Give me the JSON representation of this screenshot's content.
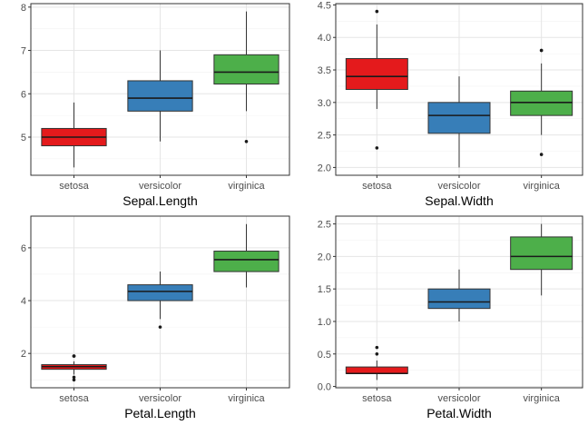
{
  "chart_data": [
    {
      "type": "box",
      "xlabel": "Sepal.Length",
      "categories": [
        "setosa",
        "versicolor",
        "virginica"
      ],
      "ylim": [
        4.12,
        8.08
      ],
      "yticks": [
        5,
        6,
        7,
        8
      ],
      "grid": true,
      "boxes": [
        {
          "category": "setosa",
          "min": 4.3,
          "q1": 4.8,
          "median": 5.0,
          "q3": 5.2,
          "max": 5.8,
          "outliers": [],
          "color": "#E41A1C"
        },
        {
          "category": "versicolor",
          "min": 4.9,
          "q1": 5.6,
          "median": 5.9,
          "q3": 6.3,
          "max": 7.0,
          "outliers": [],
          "color": "#377EB8"
        },
        {
          "category": "virginica",
          "min": 5.6,
          "q1": 6.225,
          "median": 6.5,
          "q3": 6.9,
          "max": 7.9,
          "outliers": [
            4.9
          ],
          "color": "#4DAF4A"
        }
      ]
    },
    {
      "type": "box",
      "xlabel": "Sepal.Width",
      "categories": [
        "setosa",
        "versicolor",
        "virginica"
      ],
      "ylim": [
        1.88,
        4.52
      ],
      "yticks": [
        2.0,
        2.5,
        3.0,
        3.5,
        4.0,
        4.5
      ],
      "grid": true,
      "boxes": [
        {
          "category": "setosa",
          "min": 2.9,
          "q1": 3.2,
          "median": 3.4,
          "q3": 3.675,
          "max": 4.2,
          "outliers": [
            4.4,
            2.3
          ],
          "color": "#E41A1C"
        },
        {
          "category": "versicolor",
          "min": 2.0,
          "q1": 2.525,
          "median": 2.8,
          "q3": 3.0,
          "max": 3.4,
          "outliers": [],
          "color": "#377EB8"
        },
        {
          "category": "virginica",
          "min": 2.5,
          "q1": 2.8,
          "median": 3.0,
          "q3": 3.175,
          "max": 3.6,
          "outliers": [
            3.8,
            3.8,
            2.2
          ],
          "color": "#4DAF4A"
        }
      ]
    },
    {
      "type": "box",
      "xlabel": "Petal.Length",
      "categories": [
        "setosa",
        "versicolor",
        "virginica"
      ],
      "ylim": [
        0.7,
        7.2
      ],
      "yticks": [
        2,
        4,
        6
      ],
      "grid": true,
      "boxes": [
        {
          "category": "setosa",
          "min": 1.2,
          "q1": 1.4,
          "median": 1.5,
          "q3": 1.575,
          "max": 1.7,
          "outliers": [
            1.9,
            1.9,
            1.1,
            1.0
          ],
          "color": "#E41A1C"
        },
        {
          "category": "versicolor",
          "min": 3.3,
          "q1": 4.0,
          "median": 4.35,
          "q3": 4.6,
          "max": 5.1,
          "outliers": [
            3.0
          ],
          "color": "#377EB8"
        },
        {
          "category": "virginica",
          "min": 4.5,
          "q1": 5.1,
          "median": 5.55,
          "q3": 5.875,
          "max": 6.9,
          "outliers": [],
          "color": "#4DAF4A"
        }
      ]
    },
    {
      "type": "box",
      "xlabel": "Petal.Width",
      "categories": [
        "setosa",
        "versicolor",
        "virginica"
      ],
      "ylim": [
        -0.02,
        2.62
      ],
      "yticks": [
        0.0,
        0.5,
        1.0,
        1.5,
        2.0,
        2.5
      ],
      "grid": true,
      "boxes": [
        {
          "category": "setosa",
          "min": 0.1,
          "q1": 0.2,
          "median": 0.2,
          "q3": 0.3,
          "max": 0.4,
          "outliers": [
            0.5,
            0.6
          ],
          "color": "#E41A1C"
        },
        {
          "category": "versicolor",
          "min": 1.0,
          "q1": 1.2,
          "median": 1.3,
          "q3": 1.5,
          "max": 1.8,
          "outliers": [],
          "color": "#377EB8"
        },
        {
          "category": "virginica",
          "min": 1.4,
          "q1": 1.8,
          "median": 2.0,
          "q3": 2.3,
          "max": 2.5,
          "outliers": [],
          "color": "#4DAF4A"
        }
      ]
    }
  ]
}
